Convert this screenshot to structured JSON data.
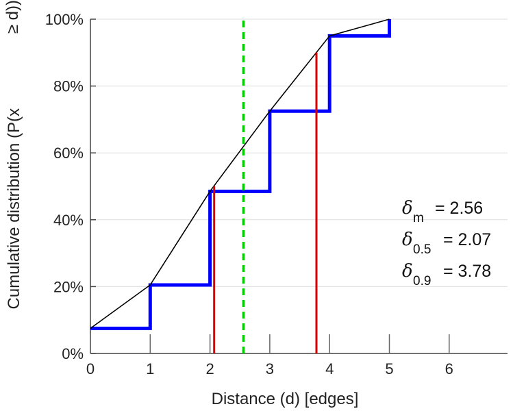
{
  "chart_data": {
    "type": "line",
    "title": "",
    "xlabel": "Distance (d) [edges]",
    "ylabel_main": "Cumulative distribution (P(x",
    "ylabel_wrap": "≥ d))",
    "xlim": [
      0,
      7
    ],
    "ylim": [
      0,
      100
    ],
    "x_ticks": [
      0,
      1,
      2,
      3,
      4,
      5,
      6
    ],
    "x_tick_labels": [
      "0",
      "1",
      "2",
      "3",
      "4",
      "5",
      "6"
    ],
    "y_ticks": [
      0,
      20,
      40,
      60,
      80,
      100
    ],
    "y_tick_labels": [
      "0%",
      "20%",
      "40%",
      "60%",
      "80%",
      "100%"
    ],
    "grid": "horizontal",
    "series": [
      {
        "kind": "step",
        "color": "#0000ff",
        "x": [
          0,
          1,
          2,
          3,
          4,
          5
        ],
        "y": [
          7.5,
          20.5,
          48.5,
          72.5,
          95,
          100
        ]
      },
      {
        "kind": "line",
        "color": "#000000",
        "x": [
          0,
          1,
          2,
          3,
          4,
          5
        ],
        "y": [
          7.5,
          20.5,
          48.5,
          72.5,
          95,
          100
        ]
      }
    ],
    "vlines": [
      {
        "x": 2.07,
        "y_top": 50,
        "color": "#dd0000",
        "style": "solid"
      },
      {
        "x": 3.78,
        "y_top": 90,
        "color": "#dd0000",
        "style": "solid"
      },
      {
        "x": 2.56,
        "y_top": 100,
        "color": "#00cc00",
        "style": "dashed"
      }
    ],
    "annotations": [
      {
        "symbol": "δ",
        "sub": "m",
        "text": "= 2.56"
      },
      {
        "symbol": "δ",
        "sub": "0.5",
        "text": "= 2.07"
      },
      {
        "symbol": "δ",
        "sub": "0.9",
        "text": "= 3.78"
      }
    ]
  }
}
